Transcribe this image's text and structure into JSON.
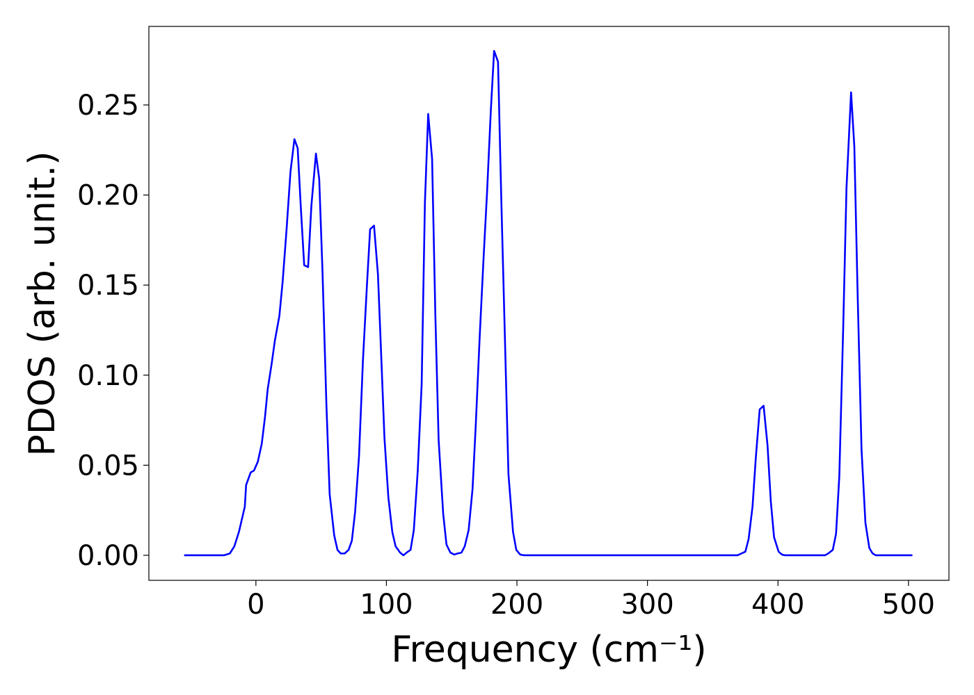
{
  "chart_data": {
    "type": "line",
    "xlabel": "Frequency (cm⁻¹)",
    "ylabel": "PDOS (arb. unit.)",
    "xlim": [
      -82,
      531
    ],
    "ylim": [
      -0.0139,
      0.2936
    ],
    "xticks": [
      0,
      100,
      200,
      300,
      400,
      500
    ],
    "yticks": [
      {
        "value": 0,
        "label": "0.00"
      },
      {
        "value": 0.05,
        "label": "0.05"
      },
      {
        "value": 0.1,
        "label": "0.10"
      },
      {
        "value": 0.15,
        "label": "0.15"
      },
      {
        "value": 0.2,
        "label": "0.20"
      },
      {
        "value": 0.25,
        "label": "0.25"
      }
    ],
    "grid": false,
    "series": [
      {
        "color": "#0000ff",
        "x": [
          -55,
          -24.5,
          -20,
          -16.5,
          -13,
          -8.5,
          -7.5,
          -4,
          -1.5,
          1.5,
          4.5,
          7,
          9,
          12,
          14.5,
          18,
          20.5,
          23.5,
          26.5,
          29.5,
          32,
          34.5,
          37,
          40,
          42.5,
          46,
          48.5,
          51,
          54,
          56.5,
          60,
          62.5,
          65,
          68,
          71,
          73.5,
          76,
          79,
          82,
          85,
          87.5,
          90.5,
          93.5,
          96,
          98.5,
          101.5,
          104.5,
          107,
          110.5,
          113,
          115.5,
          118.5,
          121,
          124,
          127,
          129.5,
          132,
          135,
          137.5,
          140,
          143.5,
          146,
          149,
          152,
          154.5,
          157.5,
          160,
          163,
          166,
          168.5,
          171.5,
          174.5,
          177,
          180,
          182.5,
          185.5,
          188,
          193.5,
          197,
          199.5,
          202.5,
          205.5,
          369,
          372,
          375,
          377.5,
          380.5,
          383,
          386,
          389,
          392,
          394.5,
          397,
          400.5,
          403,
          405.5,
          436,
          438.5,
          442,
          444.5,
          447,
          450,
          452.5,
          456,
          458.5,
          461,
          464,
          467,
          470,
          472.5,
          475,
          503
        ],
        "values": [
          0,
          0,
          0.001,
          0.005,
          0.013,
          0.027,
          0.039,
          0.046,
          0.047,
          0.052,
          0.062,
          0.077,
          0.092,
          0.106,
          0.119,
          0.133,
          0.152,
          0.181,
          0.213,
          0.231,
          0.226,
          0.192,
          0.161,
          0.16,
          0.194,
          0.223,
          0.209,
          0.158,
          0.084,
          0.034,
          0.011,
          0.003,
          0.001,
          0.001,
          0.003,
          0.008,
          0.024,
          0.055,
          0.108,
          0.149,
          0.181,
          0.183,
          0.156,
          0.111,
          0.065,
          0.032,
          0.013,
          0.005,
          0.0015,
          0,
          0.0015,
          0.003,
          0.014,
          0.047,
          0.095,
          0.196,
          0.245,
          0.22,
          0.133,
          0.064,
          0.023,
          0.006,
          0.0015,
          0.0004,
          0.001,
          0.0015,
          0.005,
          0.014,
          0.037,
          0.073,
          0.122,
          0.166,
          0.2,
          0.247,
          0.28,
          0.274,
          0.198,
          0.045,
          0.013,
          0.003,
          0.0004,
          0,
          0,
          0.001,
          0.002,
          0.009,
          0.027,
          0.054,
          0.081,
          0.083,
          0.061,
          0.03,
          0.01,
          0.002,
          0.0004,
          0,
          0,
          0.001,
          0.003,
          0.012,
          0.044,
          0.127,
          0.204,
          0.257,
          0.227,
          0.146,
          0.059,
          0.018,
          0.004,
          0.001,
          0,
          0
        ]
      }
    ]
  }
}
